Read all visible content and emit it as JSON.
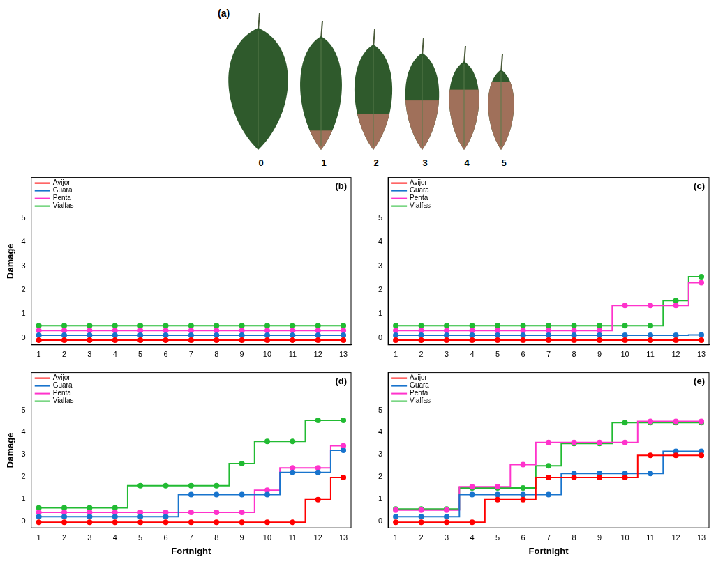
{
  "panel_a": {
    "label": "(a)",
    "scores": [
      0,
      1,
      2,
      3,
      4,
      5
    ]
  },
  "chart_data": [
    {
      "type": "line",
      "title": "(b)",
      "ylabel": "Damage",
      "x": [
        1,
        2,
        3,
        4,
        5,
        6,
        7,
        8,
        9,
        10,
        11,
        12,
        13
      ],
      "xlim": [
        0.7,
        13.3
      ],
      "xticks": [
        1,
        2,
        3,
        4,
        5,
        6,
        7,
        8,
        9,
        10,
        11,
        12,
        13
      ],
      "ylim": [
        -0.3,
        6.7
      ],
      "yticks": [
        0,
        1,
        2,
        3,
        4,
        5
      ],
      "legend": "top-left",
      "grid": false,
      "line_style": "step",
      "marker": "circle",
      "series": [
        {
          "name": "Avijor",
          "color": "#ff0000",
          "values": [
            -0.1,
            -0.1,
            -0.1,
            -0.1,
            -0.1,
            -0.1,
            -0.1,
            -0.1,
            -0.1,
            -0.1,
            -0.1,
            -0.1,
            -0.1
          ]
        },
        {
          "name": "Guara",
          "color": "#1874cd",
          "values": [
            0.1,
            0.1,
            0.1,
            0.1,
            0.1,
            0.1,
            0.1,
            0.1,
            0.1,
            0.1,
            0.1,
            0.1,
            0.1
          ]
        },
        {
          "name": "Penta",
          "color": "#ff33cc",
          "values": [
            0.3,
            0.3,
            0.3,
            0.3,
            0.3,
            0.3,
            0.3,
            0.3,
            0.3,
            0.3,
            0.3,
            0.3,
            0.3
          ]
        },
        {
          "name": "Vialfas",
          "color": "#22bb33",
          "values": [
            0.5,
            0.5,
            0.5,
            0.5,
            0.5,
            0.5,
            0.5,
            0.5,
            0.5,
            0.5,
            0.5,
            0.5,
            0.5
          ]
        }
      ]
    },
    {
      "type": "line",
      "title": "(c)",
      "x": [
        1,
        2,
        3,
        4,
        5,
        6,
        7,
        8,
        9,
        10,
        11,
        12,
        13
      ],
      "xlim": [
        0.7,
        13.3
      ],
      "xticks": [
        1,
        2,
        3,
        4,
        5,
        6,
        7,
        8,
        9,
        10,
        11,
        12,
        13
      ],
      "ylim": [
        -0.3,
        6.7
      ],
      "yticks": [
        0,
        1,
        2,
        3,
        4,
        5
      ],
      "legend": "top-left",
      "grid": false,
      "line_style": "step",
      "marker": "circle",
      "series": [
        {
          "name": "Avijor",
          "color": "#ff0000",
          "values": [
            -0.1,
            -0.1,
            -0.1,
            -0.1,
            -0.1,
            -0.1,
            -0.1,
            -0.1,
            -0.1,
            -0.1,
            -0.1,
            -0.1,
            -0.1
          ]
        },
        {
          "name": "Guara",
          "color": "#1874cd",
          "values": [
            0.1,
            0.1,
            0.1,
            0.1,
            0.1,
            0.1,
            0.1,
            0.1,
            0.1,
            0.1,
            0.1,
            0.1,
            0.12
          ]
        },
        {
          "name": "Penta",
          "color": "#ff33cc",
          "values": [
            0.3,
            0.3,
            0.3,
            0.3,
            0.3,
            0.3,
            0.3,
            0.3,
            0.3,
            1.35,
            1.35,
            1.35,
            2.3
          ]
        },
        {
          "name": "Vialfas",
          "color": "#22bb33",
          "values": [
            0.5,
            0.5,
            0.5,
            0.5,
            0.5,
            0.5,
            0.5,
            0.5,
            0.5,
            0.5,
            0.5,
            1.55,
            2.55
          ]
        }
      ]
    },
    {
      "type": "line",
      "title": "(d)",
      "ylabel": "Damage",
      "xlabel": "Fortnight",
      "x": [
        1,
        2,
        3,
        4,
        5,
        6,
        7,
        8,
        9,
        10,
        11,
        12,
        13
      ],
      "xlim": [
        0.7,
        13.3
      ],
      "xticks": [
        1,
        2,
        3,
        4,
        5,
        6,
        7,
        8,
        9,
        10,
        11,
        12,
        13
      ],
      "ylim": [
        -0.3,
        6.7
      ],
      "yticks": [
        0,
        1,
        2,
        3,
        4,
        5
      ],
      "legend": "top-left",
      "grid": false,
      "line_style": "step",
      "marker": "circle",
      "series": [
        {
          "name": "Avijor",
          "color": "#ff0000",
          "values": [
            -0.05,
            -0.05,
            -0.05,
            -0.05,
            -0.05,
            -0.05,
            -0.05,
            -0.05,
            -0.05,
            -0.05,
            -0.05,
            0.97,
            1.97
          ]
        },
        {
          "name": "Guara",
          "color": "#1874cd",
          "values": [
            0.2,
            0.2,
            0.2,
            0.2,
            0.2,
            0.2,
            1.2,
            1.2,
            1.2,
            1.2,
            2.2,
            2.2,
            3.2
          ]
        },
        {
          "name": "Penta",
          "color": "#ff33cc",
          "values": [
            0.4,
            0.4,
            0.4,
            0.4,
            0.4,
            0.4,
            0.4,
            0.4,
            0.4,
            1.4,
            2.4,
            2.4,
            3.4
          ]
        },
        {
          "name": "Vialfas",
          "color": "#22bb33",
          "values": [
            0.6,
            0.6,
            0.6,
            0.6,
            1.6,
            1.6,
            1.6,
            1.6,
            2.6,
            3.6,
            3.6,
            4.55,
            4.55
          ]
        }
      ]
    },
    {
      "type": "line",
      "title": "(e)",
      "xlabel": "Fortnight",
      "x": [
        1,
        2,
        3,
        4,
        5,
        6,
        7,
        8,
        9,
        10,
        11,
        12,
        13
      ],
      "xlim": [
        0.7,
        13.3
      ],
      "xticks": [
        1,
        2,
        3,
        4,
        5,
        6,
        7,
        8,
        9,
        10,
        11,
        12,
        13
      ],
      "ylim": [
        -0.3,
        6.7
      ],
      "yticks": [
        0,
        1,
        2,
        3,
        4,
        5
      ],
      "legend": "top-left",
      "grid": false,
      "line_style": "step",
      "marker": "circle",
      "series": [
        {
          "name": "Avijor",
          "color": "#ff0000",
          "values": [
            -0.05,
            -0.05,
            -0.05,
            -0.05,
            0.97,
            0.97,
            1.97,
            1.97,
            1.97,
            1.97,
            2.97,
            2.97,
            2.97
          ]
        },
        {
          "name": "Guara",
          "color": "#1874cd",
          "values": [
            0.2,
            0.2,
            0.2,
            1.2,
            1.2,
            1.2,
            1.2,
            2.15,
            2.15,
            2.15,
            2.15,
            3.15,
            3.15
          ]
        },
        {
          "name": "Penta",
          "color": "#ff33cc",
          "values": [
            0.5,
            0.5,
            0.5,
            1.55,
            1.55,
            2.55,
            3.55,
            3.55,
            3.55,
            3.55,
            4.5,
            4.5,
            4.5
          ]
        },
        {
          "name": "Vialfas",
          "color": "#22bb33",
          "values": [
            0.55,
            0.55,
            0.55,
            1.5,
            1.5,
            1.5,
            2.5,
            3.5,
            3.5,
            4.45,
            4.45,
            4.45,
            4.45
          ]
        }
      ]
    }
  ]
}
